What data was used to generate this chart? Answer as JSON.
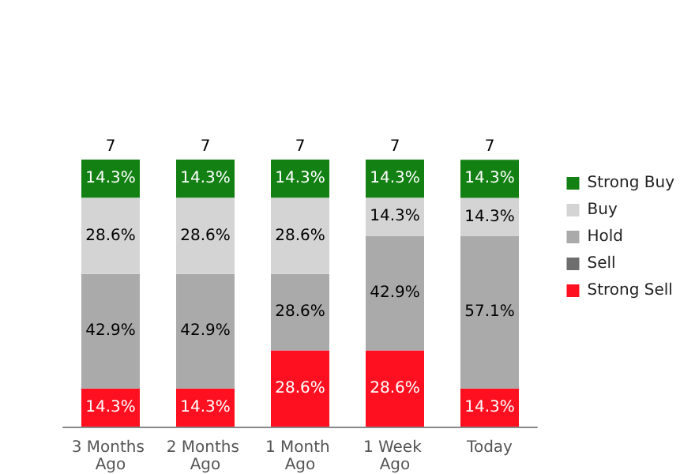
{
  "chart_data": {
    "type": "bar",
    "stacked": true,
    "legend": "right",
    "categories": [
      "3 Months Ago",
      "2 Months Ago",
      "1 Month Ago",
      "1 Week Ago",
      "Today"
    ],
    "series": [
      {
        "name": "Strong Sell",
        "color": "#ff1020",
        "values": [
          14.3,
          14.3,
          28.6,
          28.6,
          14.3
        ],
        "value_labels": [
          "14.3%",
          "14.3%",
          "28.6%",
          "28.6%",
          "14.3%"
        ]
      },
      {
        "name": "Sell",
        "color": "#6e6e6e",
        "values": [
          null,
          null,
          null,
          null,
          null
        ]
      },
      {
        "name": "Hold",
        "color": "#aaaaaa",
        "values": [
          42.9,
          42.9,
          28.6,
          42.9,
          57.1
        ],
        "value_labels": [
          "42.9%",
          "42.9%",
          "28.6%",
          "42.9%",
          "57.1%"
        ]
      },
      {
        "name": "Buy",
        "color": "#d4d4d4",
        "values": [
          28.6,
          28.6,
          28.6,
          14.3,
          14.3
        ],
        "value_labels": [
          "28.6%",
          "28.6%",
          "28.6%",
          "14.3%",
          "14.3%"
        ]
      },
      {
        "name": "Strong Buy",
        "color": "#138013",
        "values": [
          14.3,
          14.3,
          14.3,
          14.3,
          14.3
        ],
        "value_labels": [
          "14.3%",
          "14.3%",
          "14.3%",
          "14.3%",
          "14.3%"
        ]
      }
    ],
    "annotations": [
      {
        "text": "7",
        "x": "3 Months Ago",
        "y": 100
      },
      {
        "text": "7",
        "x": "2 Months Ago",
        "y": 100
      },
      {
        "text": "7",
        "x": "1 Month Ago",
        "y": 100
      },
      {
        "text": "7",
        "x": "1 Week Ago",
        "y": 100
      },
      {
        "text": "7",
        "x": "Today",
        "y": 100
      }
    ]
  }
}
